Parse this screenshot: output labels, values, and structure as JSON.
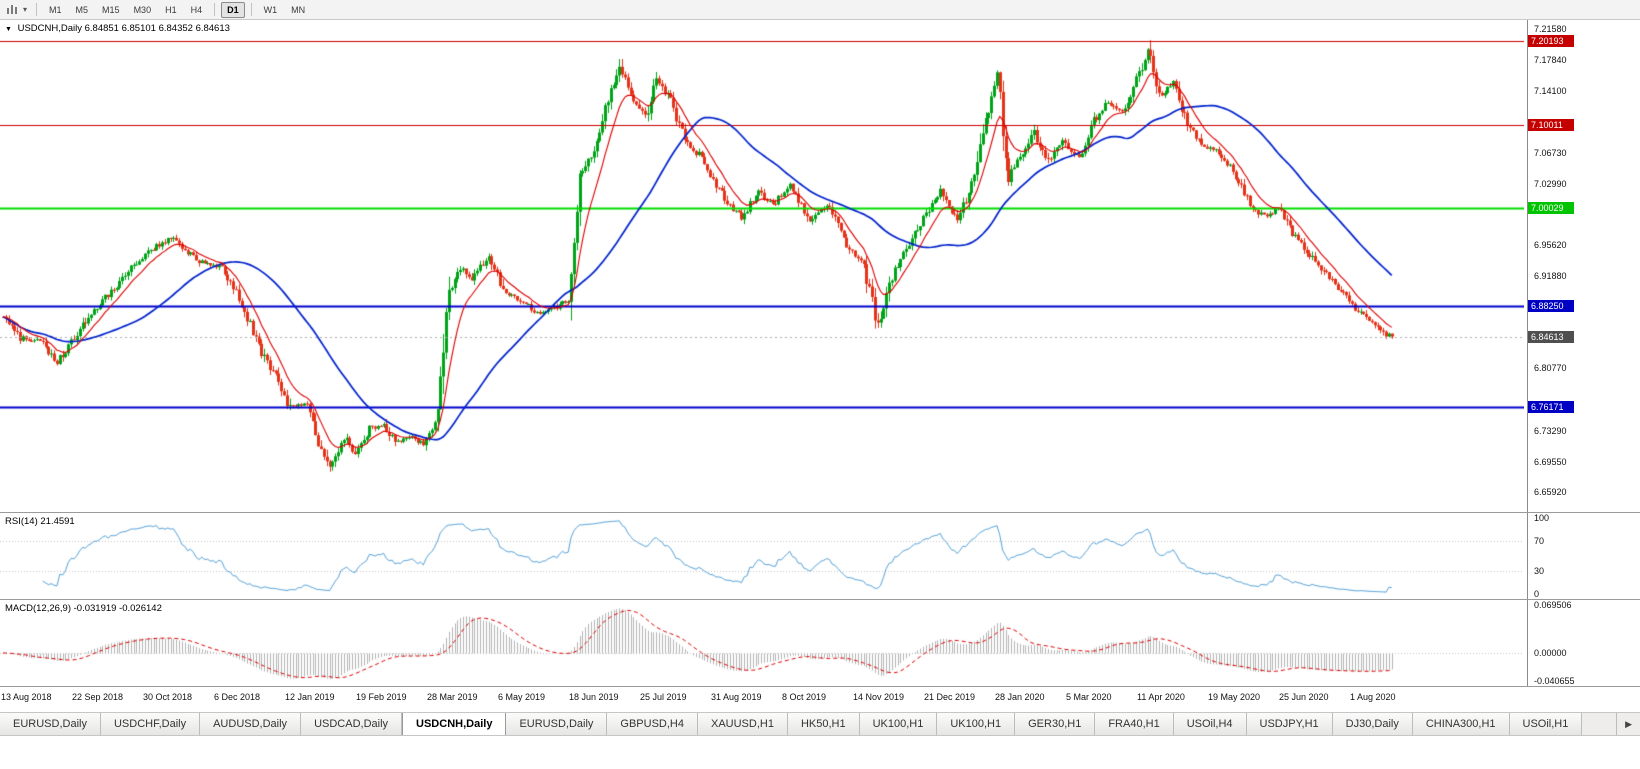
{
  "window": {
    "title_symbol": "USDCNH,Daily",
    "title_ohlc": "6.84851 6.85101 6.84352 6.84613",
    "collapse_icon": "▼"
  },
  "toolbar": {
    "chart_type_icon": "bar-chart-icon",
    "dropdown_icon": "chevron-down-icon",
    "dropdown_glyph": "▾",
    "timeframes": [
      {
        "label": "M1"
      },
      {
        "label": "M5"
      },
      {
        "label": "M15"
      },
      {
        "label": "M30"
      },
      {
        "label": "H1"
      },
      {
        "label": "H4",
        "sep_after": true
      },
      {
        "label": "D1",
        "active": true,
        "sep_after": true
      },
      {
        "label": "W1"
      },
      {
        "label": "MN"
      }
    ]
  },
  "colors": {
    "candle_up": "#00a318",
    "candle_down": "#e5331a",
    "ma_fast": "#dd0000",
    "ma_slow": "#0022cc",
    "rsi_line": "#56a2d9",
    "macd_hist": "#b4b4b4",
    "macd_signal": "#dd0000",
    "current_price_line": "#b0b0b0"
  },
  "chart_data": {
    "type": "candlestick",
    "symbol": "USDCNH",
    "timeframe": "Daily",
    "bars": 490,
    "current_price": "6.84613",
    "y_range": [
      6.635,
      7.227
    ],
    "y_axis_ticks": [
      "7.21580",
      "7.17840",
      "7.14100",
      "7.06730",
      "7.02990",
      "6.95620",
      "6.91880",
      "6.80770",
      "6.73290",
      "6.69550",
      "6.65920"
    ],
    "price_badges": [
      {
        "value": "7.20193",
        "color": "#c40000"
      },
      {
        "value": "7.10011",
        "color": "#c40000"
      },
      {
        "value": "7.00029",
        "color": "#00c400"
      },
      {
        "value": "6.88250",
        "color": "#0000c4"
      },
      {
        "value": "6.84613",
        "color": "#4f4f4f"
      },
      {
        "value": "6.76171",
        "color": "#0000c4"
      }
    ],
    "hlines": [
      {
        "price": 7.20193,
        "color": "#cc0000",
        "width": 1
      },
      {
        "price": 7.10011,
        "color": "#cc0000",
        "width": 1
      },
      {
        "price": 7.00029,
        "color": "#00dd00",
        "width": 2
      },
      {
        "price": 6.8825,
        "color": "#0000cc",
        "width": 2
      },
      {
        "price": 6.76171,
        "color": "#0000cc",
        "width": 2
      }
    ],
    "date_labels": [
      "13 Aug 2018",
      "22 Sep 2018",
      "30 Oct 2018",
      "6 Dec 2018",
      "12 Jan 2019",
      "19 Feb 2019",
      "28 Mar 2019",
      "6 May 2019",
      "18 Jun 2019",
      "25 Jul 2019",
      "31 Aug 2019",
      "8 Oct 2019",
      "14 Nov 2019",
      "21 Dec 2019",
      "28 Jan 2020",
      "5 Mar 2020",
      "11 Apr 2020",
      "19 May 2020",
      "25 Jun 2020",
      "1 Aug 2020"
    ],
    "label_every": 25,
    "price_anchors": [
      [
        0,
        6.87
      ],
      [
        6,
        6.845
      ],
      [
        13,
        6.84
      ],
      [
        19,
        6.815
      ],
      [
        26,
        6.85
      ],
      [
        31,
        6.875
      ],
      [
        38,
        6.9
      ],
      [
        45,
        6.93
      ],
      [
        54,
        6.955
      ],
      [
        59,
        6.965
      ],
      [
        64,
        6.95
      ],
      [
        70,
        6.935
      ],
      [
        77,
        6.93
      ],
      [
        82,
        6.9
      ],
      [
        87,
        6.86
      ],
      [
        92,
        6.82
      ],
      [
        96,
        6.8
      ],
      [
        101,
        6.76
      ],
      [
        107,
        6.765
      ],
      [
        111,
        6.72
      ],
      [
        115,
        6.684
      ],
      [
        120,
        6.725
      ],
      [
        124,
        6.705
      ],
      [
        129,
        6.735
      ],
      [
        134,
        6.74
      ],
      [
        138,
        6.72
      ],
      [
        144,
        6.725
      ],
      [
        148,
        6.715
      ],
      [
        152,
        6.74
      ],
      [
        157,
        6.9
      ],
      [
        161,
        6.93
      ],
      [
        165,
        6.915
      ],
      [
        171,
        6.945
      ],
      [
        176,
        6.9
      ],
      [
        182,
        6.89
      ],
      [
        188,
        6.875
      ],
      [
        194,
        6.88
      ],
      [
        199,
        6.89
      ],
      [
        203,
        7.04
      ],
      [
        208,
        7.07
      ],
      [
        212,
        7.12
      ],
      [
        217,
        7.175
      ],
      [
        221,
        7.13
      ],
      [
        226,
        7.11
      ],
      [
        230,
        7.16
      ],
      [
        235,
        7.13
      ],
      [
        240,
        7.08
      ],
      [
        245,
        7.065
      ],
      [
        250,
        7.035
      ],
      [
        255,
        7.005
      ],
      [
        260,
        6.99
      ],
      [
        266,
        7.02
      ],
      [
        271,
        7.005
      ],
      [
        277,
        7.03
      ],
      [
        284,
        6.985
      ],
      [
        291,
        7.005
      ],
      [
        297,
        6.955
      ],
      [
        303,
        6.93
      ],
      [
        308,
        6.86
      ],
      [
        313,
        6.92
      ],
      [
        319,
        6.955
      ],
      [
        325,
        6.995
      ],
      [
        330,
        7.02
      ],
      [
        336,
        6.985
      ],
      [
        342,
        7.04
      ],
      [
        346,
        7.11
      ],
      [
        350,
        7.16
      ],
      [
        354,
        7.04
      ],
      [
        358,
        7.06
      ],
      [
        363,
        7.09
      ],
      [
        368,
        7.055
      ],
      [
        373,
        7.08
      ],
      [
        379,
        7.06
      ],
      [
        384,
        7.105
      ],
      [
        389,
        7.13
      ],
      [
        394,
        7.115
      ],
      [
        399,
        7.155
      ],
      [
        403,
        7.19
      ],
      [
        407,
        7.135
      ],
      [
        412,
        7.15
      ],
      [
        417,
        7.1
      ],
      [
        422,
        7.075
      ],
      [
        427,
        7.07
      ],
      [
        433,
        7.045
      ],
      [
        439,
        7.005
      ],
      [
        444,
        6.99
      ],
      [
        449,
        7.0
      ],
      [
        454,
        6.97
      ],
      [
        459,
        6.95
      ],
      [
        465,
        6.925
      ],
      [
        470,
        6.905
      ],
      [
        476,
        6.88
      ],
      [
        481,
        6.865
      ],
      [
        486,
        6.85
      ],
      [
        489,
        6.846
      ]
    ],
    "indicators": {
      "rsi": {
        "label": "RSI(14)",
        "value": "21.4591",
        "ticks": [
          "100",
          "70",
          "30",
          "0"
        ],
        "guide_levels": [
          70,
          30
        ]
      },
      "macd": {
        "label": "MACD(12,26,9)",
        "values": "-0.031919 -0.026142",
        "ticks": [
          "0.069506",
          "0.00000",
          "-0.040655"
        ],
        "range": [
          -0.040655,
          0.069506
        ]
      }
    }
  },
  "tab_bar": {
    "tabs": [
      {
        "label": "EURUSD,Daily"
      },
      {
        "label": "USDCHF,Daily"
      },
      {
        "label": "AUDUSD,Daily"
      },
      {
        "label": "USDCAD,Daily"
      },
      {
        "label": "USDCNH,Daily",
        "active": true
      },
      {
        "label": "EURUSD,Daily"
      },
      {
        "label": "GBPUSD,H4"
      },
      {
        "label": "XAUUSD,H1"
      },
      {
        "label": "HK50,H1"
      },
      {
        "label": "UK100,H1"
      },
      {
        "label": "UK100,H1"
      },
      {
        "label": "GER30,H1"
      },
      {
        "label": "FRA40,H1"
      },
      {
        "label": "USOil,H4"
      },
      {
        "label": "USDJPY,H1"
      },
      {
        "label": "DJ30,Daily"
      },
      {
        "label": "CHINA300,H1"
      },
      {
        "label": "USOil,H1"
      }
    ],
    "scroll_right_label": "▶"
  }
}
